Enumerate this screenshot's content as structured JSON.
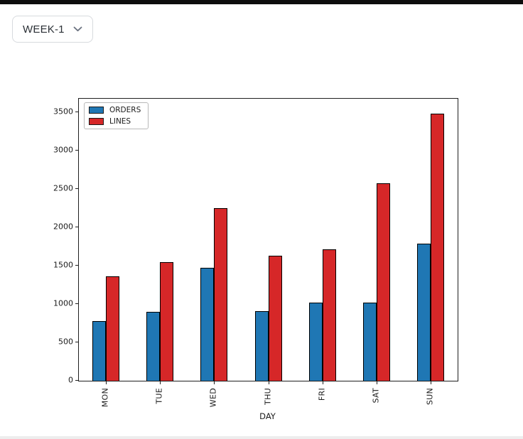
{
  "page": {
    "top_bar_color": "#0d0d0d",
    "background": "#ffffff",
    "footer_strip_color": "#ededed"
  },
  "week_selector": {
    "label": "WEEK-1",
    "chevron_icon": "chevron-down-icon",
    "chevron_color": "#6b7280"
  },
  "chart_data": {
    "type": "bar",
    "title": "",
    "xlabel": "DAY",
    "ylabel": "",
    "categories": [
      "MON",
      "TUE",
      "WED",
      "THU",
      "FRI",
      "SAT",
      "SUN"
    ],
    "series": [
      {
        "name": "ORDERS",
        "color": "#1f77b4",
        "values": [
          775,
          895,
          1470,
          905,
          1015,
          1015,
          1790
        ]
      },
      {
        "name": "LINES",
        "color": "#d62728",
        "values": [
          1360,
          1550,
          2245,
          1630,
          1710,
          2575,
          3485
        ]
      }
    ],
    "ylim": [
      0,
      3675
    ],
    "yticks": [
      0,
      500,
      1000,
      1500,
      2000,
      2500,
      3000,
      3500
    ],
    "legend_position": "upper-left",
    "grid": false,
    "bar_edge_color": "#000000",
    "x_tick_rotation": 90
  }
}
